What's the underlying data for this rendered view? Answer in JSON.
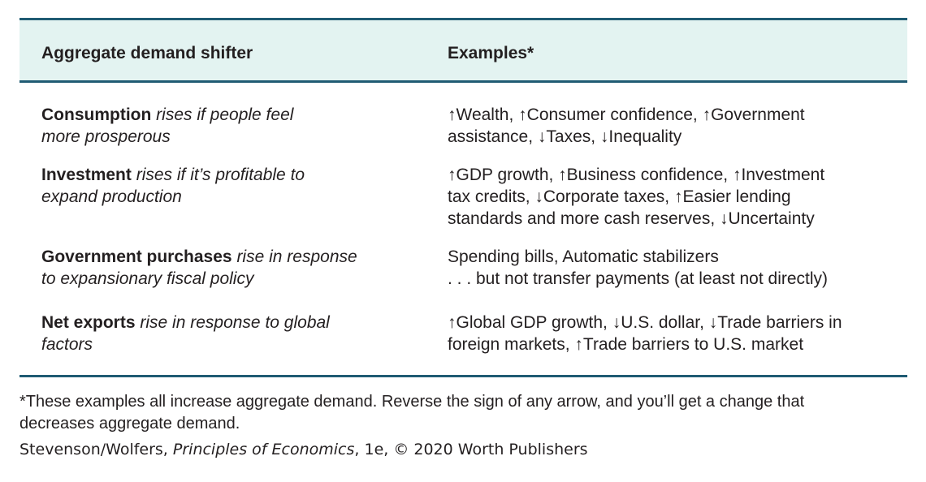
{
  "table": {
    "headers": {
      "shifter": "Aggregate demand shifter",
      "examples": "Examples*"
    },
    "rows": [
      {
        "name": "Consumption",
        "desc1": "rises if people feel",
        "desc2": "more prosperous",
        "ex": [
          "↑Wealth, ↑Consumer confidence, ↑Government",
          "assistance, ↓Taxes, ↓Inequality"
        ]
      },
      {
        "name": "Investment",
        "desc1": "rises if it’s profitable to",
        "desc2": "expand production",
        "ex": [
          "↑GDP growth, ↑Business confidence, ↑Investment",
          "tax credits, ↓Corporate taxes, ↑Easier lending",
          "standards and more cash reserves, ↓Uncertainty"
        ]
      },
      {
        "name": "Government purchases",
        "desc1": "rise in response",
        "desc2": "to expansionary fiscal policy",
        "ex": [
          "Spending bills, Automatic stabilizers",
          ". . . but not transfer payments (at least not directly)"
        ]
      },
      {
        "name": "Net exports",
        "desc1": "rise in response to global",
        "desc2": "factors",
        "ex": [
          "↑Global GDP growth, ↓U.S. dollar, ↓Trade barriers in",
          "foreign markets, ↑Trade barriers to U.S. market"
        ]
      }
    ]
  },
  "footnote": {
    "line1": "*These examples all increase aggregate demand. Reverse the sign of any arrow, and you’ll get a change that",
    "line2": "decreases aggregate demand."
  },
  "credit": {
    "authors": "Stevenson/Wolfers, ",
    "book": "Principles of Economics",
    "rest": ", 1e, © 2020 Worth Publishers"
  }
}
